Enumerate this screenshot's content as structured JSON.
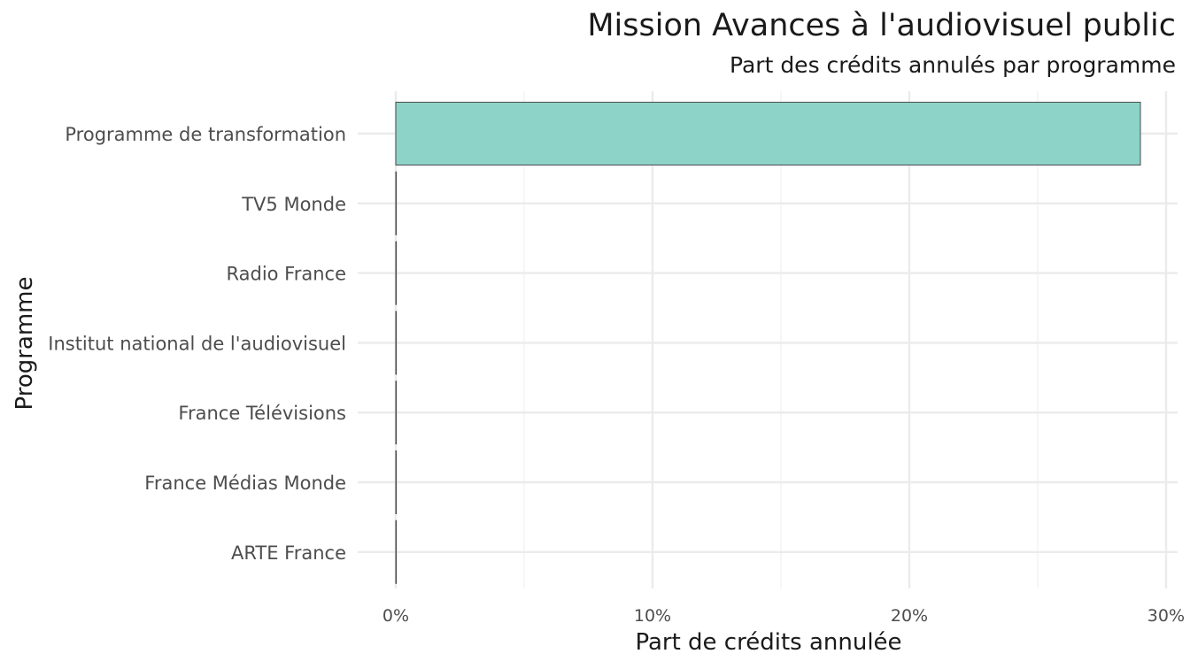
{
  "chart_data": {
    "type": "bar",
    "orientation": "horizontal",
    "title": "Mission Avances à l'audiovisuel public",
    "subtitle": "Part des crédits annulés par programme",
    "xlabel": "Part de crédits annulée",
    "ylabel": "Programme",
    "categories": [
      "Programme de transformation",
      "TV5 Monde",
      "Radio France",
      "Institut national de l'audiovisuel",
      "France Télévisions",
      "France Médias Monde",
      "ARTE France"
    ],
    "values": [
      29.0,
      0,
      0,
      0,
      0,
      0,
      0
    ],
    "unit": "%",
    "xlim": [
      0,
      30
    ],
    "xticks": [
      0,
      10,
      20,
      30
    ],
    "xtick_labels": [
      "0%",
      "10%",
      "20%",
      "30%"
    ],
    "grid": true,
    "legend": "none",
    "colors": {
      "bar_fill": "#8dd3c7",
      "bar_stroke": "#4d4d4d",
      "grid": "#ebebeb",
      "text": "#1a1a1a",
      "tick_text": "#4d4d4d"
    }
  }
}
